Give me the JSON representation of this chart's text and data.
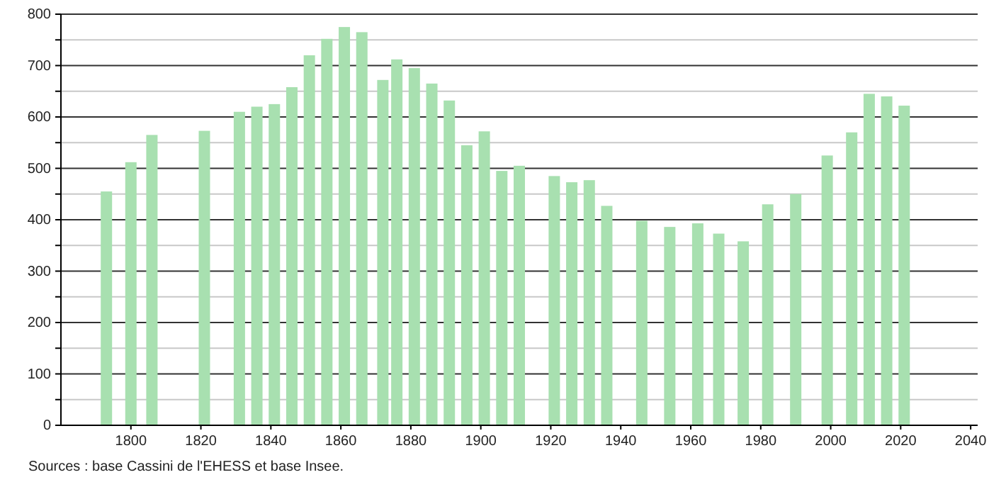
{
  "chart_data": {
    "type": "bar",
    "x": [
      1793,
      1800,
      1806,
      1821,
      1831,
      1836,
      1841,
      1846,
      1851,
      1856,
      1861,
      1866,
      1872,
      1876,
      1881,
      1886,
      1891,
      1896,
      1901,
      1906,
      1911,
      1921,
      1926,
      1931,
      1936,
      1946,
      1954,
      1962,
      1968,
      1975,
      1982,
      1990,
      1999,
      2006,
      2011,
      2016,
      2021
    ],
    "values": [
      455,
      512,
      565,
      573,
      610,
      620,
      625,
      658,
      720,
      752,
      775,
      765,
      672,
      712,
      695,
      665,
      632,
      545,
      572,
      495,
      505,
      485,
      473,
      477,
      427,
      398,
      386,
      393,
      373,
      358,
      430,
      450,
      525,
      570,
      645,
      640,
      622
    ],
    "color": "#a8e0b0",
    "xlim": [
      1780,
      2042
    ],
    "xticks": [
      1800,
      1820,
      1840,
      1860,
      1880,
      1900,
      1920,
      1940,
      1960,
      1980,
      2000,
      2020,
      2040
    ],
    "ylim": [
      0,
      800
    ],
    "yticks": [
      0,
      {
        "value": 50,
        "label": null
      },
      100,
      {
        "value": 150,
        "label": null
      },
      200,
      {
        "value": 250,
        "label": null
      },
      300,
      {
        "value": 350,
        "label": null
      },
      400,
      {
        "value": 450,
        "label": null
      },
      500,
      {
        "value": 550,
        "label": null
      },
      600,
      {
        "value": 650,
        "label": null
      },
      700,
      {
        "value": 750,
        "label": null
      },
      800
    ],
    "grid": "y",
    "annotations": [
      "Sources : base Cassini de l'EHESS et base Insee."
    ]
  }
}
